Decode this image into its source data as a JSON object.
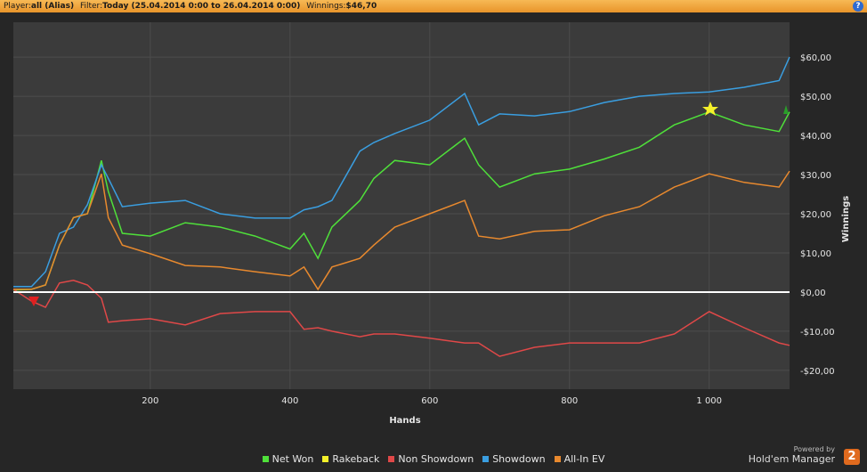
{
  "header": {
    "player_label": "Player:",
    "player": "all (Alias)",
    "filter_label": "Filter:",
    "filter": "Today (25.04.2014 0:00 to 26.04.2014 0:00)",
    "winnings_label": "Winnings:",
    "winnings": "$46,70",
    "help": "?"
  },
  "chart_data": {
    "type": "line",
    "xlabel": "Hands",
    "ylabel": "Winnings",
    "x": [
      4,
      30,
      50,
      70,
      90,
      110,
      130,
      140,
      160,
      200,
      250,
      300,
      350,
      400,
      420,
      440,
      460,
      500,
      520,
      550,
      600,
      650,
      670,
      700,
      750,
      800,
      850,
      900,
      950,
      1000,
      1050,
      1100,
      1115
    ],
    "series": [
      {
        "name": "Net Won",
        "color": "#4fe03a",
        "values": [
          0.5,
          0.7,
          1.8,
          12,
          19,
          20,
          33.6,
          25.7,
          15,
          14.3,
          17.7,
          16.6,
          14.3,
          11,
          15,
          8.6,
          16.6,
          23.4,
          29,
          33.6,
          32.5,
          39.3,
          32.5,
          26.8,
          30.2,
          31.4,
          34,
          37,
          42.7,
          46,
          42.7,
          41,
          46
        ]
      },
      {
        "name": "Rakeback",
        "color": "#f4f02a",
        "values": [
          0,
          0,
          0,
          0,
          0,
          0,
          0,
          0,
          0,
          0,
          0,
          0,
          0,
          0,
          0,
          0,
          0,
          0,
          0,
          0,
          0,
          0,
          0,
          0,
          0,
          0,
          0,
          0,
          0,
          0,
          0,
          0,
          0
        ]
      },
      {
        "name": "Non Showdown",
        "color": "#e04848",
        "values": [
          0.7,
          -2.3,
          -3.9,
          2.3,
          3,
          1.8,
          -1.6,
          -7.7,
          -7.3,
          -6.8,
          -8.4,
          -5.5,
          -5,
          -5,
          -9.5,
          -9.1,
          -10,
          -11.4,
          -10.7,
          -10.7,
          -11.8,
          -13,
          -13,
          -16.4,
          -14.1,
          -13,
          -13,
          -13,
          -10.7,
          -5,
          -9.1,
          -13,
          -13.6
        ]
      },
      {
        "name": "Showdown",
        "color": "#3a9ee0",
        "values": [
          1.4,
          1.4,
          5.2,
          15,
          16.6,
          22.3,
          32.5,
          29,
          21.8,
          22.7,
          23.4,
          20,
          18.9,
          18.9,
          21,
          21.8,
          23.4,
          36,
          38.2,
          40.5,
          43.9,
          50.7,
          42.7,
          45.5,
          45,
          46.1,
          48.4,
          50,
          50.7,
          51.1,
          52.3,
          54,
          60
        ]
      },
      {
        "name": "All-In EV",
        "color": "#e8892e",
        "values": [
          0.7,
          0.7,
          1.8,
          12,
          19,
          20,
          30.2,
          19,
          12,
          9.8,
          6.8,
          6.4,
          5.2,
          4.1,
          6.4,
          0.7,
          6.4,
          8.6,
          12,
          16.6,
          20,
          23.4,
          14.3,
          13.6,
          15.5,
          15.9,
          19.5,
          21.8,
          26.8,
          30.2,
          28,
          26.8,
          30.9
        ]
      }
    ],
    "xlim": [
      4,
      1115
    ],
    "xticks": [
      200,
      400,
      600,
      800,
      {
        "value": 1000,
        "label": "1 000"
      }
    ],
    "ylim": [
      -24.8,
      68.9
    ],
    "yticks": [
      {
        "value": -20,
        "label": "-$20,00"
      },
      {
        "value": -10,
        "label": "-$10,00"
      },
      {
        "value": 0,
        "label": "$0,00"
      },
      {
        "value": 10,
        "label": "$10,00"
      },
      {
        "value": 20,
        "label": "$20,00"
      },
      {
        "value": 30,
        "label": "$30,00"
      },
      {
        "value": 40,
        "label": "$40,00"
      },
      {
        "value": 50,
        "label": "$50,00"
      },
      {
        "value": 60,
        "label": "$60,00"
      }
    ],
    "grid": true
  },
  "footer": {
    "powered": "Powered by",
    "brand": "Hold'em Manager",
    "logo": "2"
  }
}
